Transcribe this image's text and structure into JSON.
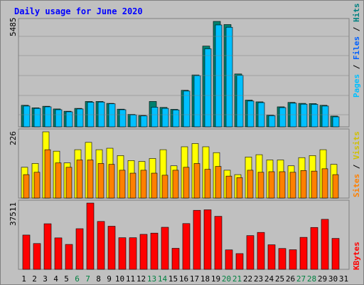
{
  "title": "Daily usage for June 2020",
  "legend": {
    "pages": "Pages",
    "files": "Files",
    "visits": "Visits",
    "sites": "Sites",
    "kbytes": "KBytes",
    "sep": " / "
  },
  "colors": {
    "pages": "#00c0ff",
    "files": "#00806e",
    "hits": "#00c0ff",
    "visits": "#ffff00",
    "sites": "#ff8000",
    "kbytes": "#ff0000",
    "title": "#0000ff",
    "weekend_day": "#008040",
    "weekday": "#000000"
  },
  "chart_data": [
    {
      "type": "bar",
      "title": "Daily usage for June 2020",
      "ylabel": "Pages / Files / Hits",
      "y_max_label": "5485",
      "ylim": [
        0,
        5485
      ],
      "categories": [
        "1",
        "2",
        "3",
        "4",
        "5",
        "6",
        "7",
        "8",
        "9",
        "10",
        "11",
        "12",
        "13",
        "14",
        "15",
        "16",
        "17",
        "18",
        "19",
        "20",
        "21",
        "22",
        "23",
        "24",
        "25",
        "26",
        "27",
        "28",
        "29",
        "30",
        "31"
      ],
      "weekend_days": [
        "6",
        "7",
        "13",
        "14",
        "20",
        "21",
        "27",
        "28"
      ],
      "series": [
        {
          "name": "Files",
          "values": [
            1120,
            990,
            1070,
            930,
            810,
            960,
            1320,
            1320,
            1220,
            920,
            650,
            590,
            1320,
            1010,
            910,
            1900,
            2700,
            4200,
            5485,
            5320,
            2750,
            1390,
            1300,
            600,
            1040,
            1270,
            1220,
            1210,
            1120,
            560,
            0
          ]
        },
        {
          "name": "Pages",
          "values": [
            1080,
            960,
            1040,
            890,
            780,
            930,
            1280,
            1290,
            1200,
            890,
            620,
            570,
            1020,
            960,
            880,
            1860,
            2660,
            4060,
            5300,
            5180,
            2680,
            1340,
            1260,
            580,
            1000,
            1230,
            1180,
            1170,
            1080,
            520,
            0
          ]
        }
      ]
    },
    {
      "type": "bar",
      "ylabel": "Visits / Sites",
      "y_max_label": "226",
      "ylim": [
        0,
        226
      ],
      "categories": [
        "1",
        "2",
        "3",
        "4",
        "5",
        "6",
        "7",
        "8",
        "9",
        "10",
        "11",
        "12",
        "13",
        "14",
        "15",
        "16",
        "17",
        "18",
        "19",
        "20",
        "21",
        "22",
        "23",
        "24",
        "25",
        "26",
        "27",
        "28",
        "29",
        "30",
        "31"
      ],
      "series": [
        {
          "name": "Visits",
          "values": [
            105,
            118,
            226,
            160,
            120,
            165,
            190,
            165,
            170,
            145,
            128,
            125,
            135,
            165,
            110,
            175,
            186,
            175,
            155,
            95,
            80,
            140,
            148,
            130,
            130,
            110,
            138,
            145,
            165,
            115,
            0
          ]
        },
        {
          "name": "Sites",
          "values": [
            80,
            88,
            165,
            120,
            105,
            130,
            130,
            118,
            115,
            95,
            85,
            95,
            85,
            78,
            95,
            105,
            118,
            98,
            108,
            75,
            70,
            95,
            88,
            90,
            90,
            88,
            94,
            92,
            100,
            80,
            0
          ]
        }
      ]
    },
    {
      "type": "bar",
      "ylabel": "KBytes",
      "y_max_label": "37511",
      "ylim": [
        0,
        37511
      ],
      "categories": [
        "1",
        "2",
        "3",
        "4",
        "5",
        "6",
        "7",
        "8",
        "9",
        "10",
        "11",
        "12",
        "13",
        "14",
        "15",
        "16",
        "17",
        "18",
        "19",
        "20",
        "21",
        "22",
        "23",
        "24",
        "25",
        "26",
        "27",
        "28",
        "29",
        "30",
        "31"
      ],
      "series": [
        {
          "name": "KBytes",
          "values": [
            19400,
            14600,
            25800,
            17800,
            14100,
            23000,
            37511,
            27100,
            24400,
            17900,
            17900,
            19800,
            20500,
            23800,
            11900,
            25900,
            33400,
            33700,
            30000,
            11000,
            8900,
            19100,
            20900,
            13900,
            11800,
            11100,
            18100,
            23700,
            28300,
            17500,
            0
          ]
        }
      ]
    }
  ]
}
